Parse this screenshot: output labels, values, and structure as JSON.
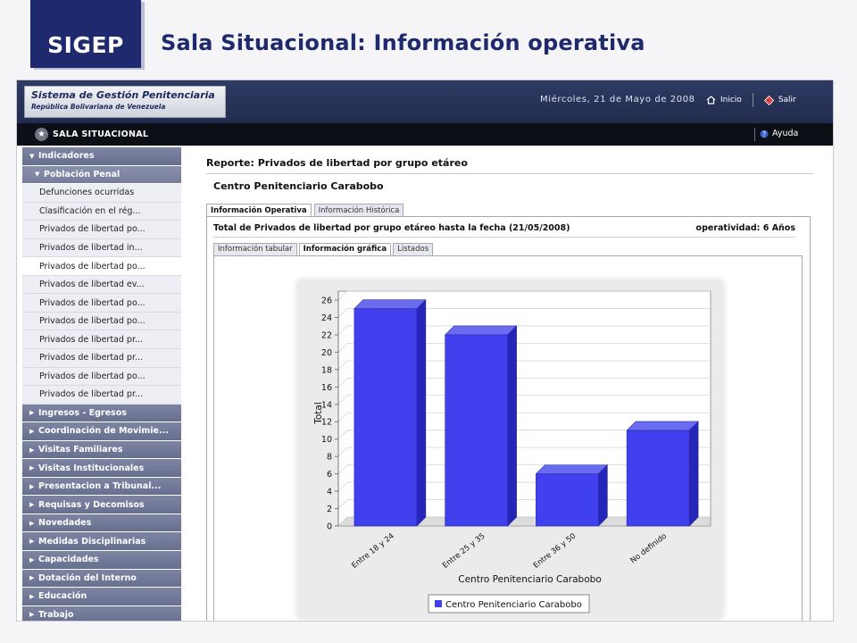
{
  "slide": {
    "logo": "SIGEP",
    "title": "Sala Situacional: Información operativa"
  },
  "app": {
    "brand_title": "Sistema de Gestión Penitenciaria",
    "brand_subtitle": "República Bolivariana de Venezuela",
    "date": "Miércoles, 21 de Mayo de 2008",
    "nav": [
      {
        "label": "Inicio",
        "icon": "home-icon"
      },
      {
        "label": "Salir",
        "icon": "exit-icon"
      }
    ],
    "section_label": "SALA SITUACIONAL",
    "help_label": "Ayuda"
  },
  "sidebar": {
    "indicadores": "Indicadores",
    "poblacion": "Población Penal",
    "items": [
      "Defunciones ocurridas",
      "Clasificación en el rég...",
      "Privados de libertad po...",
      "Privados de libertad in...",
      "Privados de libertad po...",
      "Privados de libertad ev...",
      "Privados de libertad po...",
      "Privados de libertad po...",
      "Privados de libertad pr...",
      "Privados de libertad pr...",
      "Privados de libertad po...",
      "Privados de libertad pr..."
    ],
    "active_index": 4,
    "groups": [
      "Ingresos - Egresos",
      "Coordinación de Movimie...",
      "Visitas Familiares",
      "Visitas Institucionales",
      "Presentacion a Tribunal...",
      "Requisas y Decomisos",
      "Novedades",
      "Medidas Disciplinarias",
      "Capacidades",
      "Dotación del Interno",
      "Educación",
      "Trabajo"
    ]
  },
  "report": {
    "title": "Reporte: Privados de libertad por grupo etáreo",
    "center": "Centro Penitenciario Carabobo",
    "tabs": [
      "Información Operativa",
      "Información Histórica"
    ],
    "active_tab": 0,
    "panel_title": "Total de Privados de libertad por grupo etáreo hasta la fecha (21/05/2008)",
    "operatividad": "operatividad: 6 Años",
    "subtabs": [
      "Información tabular",
      "Información gráfica",
      "Listados"
    ],
    "active_subtab": 1
  },
  "chart_data": {
    "type": "bar",
    "categories": [
      "Entre 18 y 24",
      "Entre 25 y 35",
      "Entre 36 y 50",
      "No definido"
    ],
    "series": [
      {
        "name": "Centro Penitenciario Carabobo",
        "values": [
          25,
          22,
          6,
          11
        ],
        "color": "#4040ee"
      }
    ],
    "xlabel": "Centro Penitenciario Carabobo",
    "ylabel": "Total",
    "ylim": [
      0,
      26
    ],
    "yticks": [
      "0",
      "2",
      "4",
      "6",
      "8",
      "10",
      "12",
      "14",
      "16",
      "18",
      "20",
      "22",
      "24",
      "26"
    ],
    "grid": true,
    "legend": "bottom-center",
    "style": "3d"
  },
  "colors": {
    "brand": "#1f2a6e",
    "bar_front": "#4040ee",
    "bar_top": "#6b6bf2",
    "bar_side": "#2525b8"
  }
}
